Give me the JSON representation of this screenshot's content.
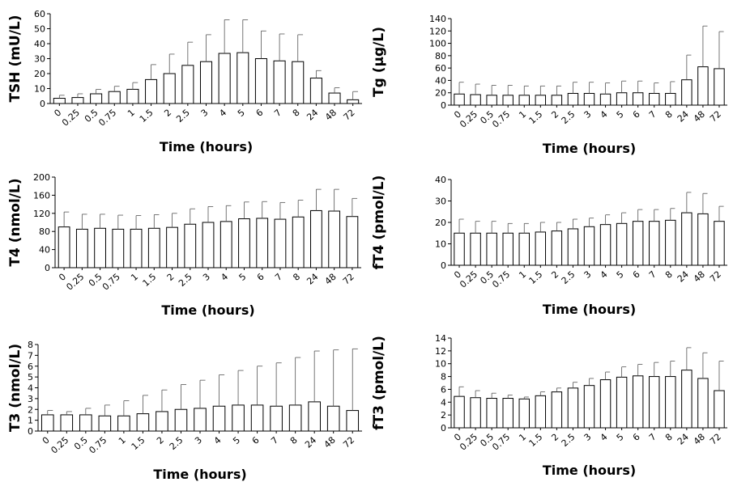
{
  "chart_data": [
    {
      "type": "bar",
      "ylabel": "TSH (mU/L)",
      "xlabel": "Time (hours)",
      "categories": [
        "0",
        "0.25",
        "0.5",
        "0.75",
        "1",
        "1.5",
        "2",
        "2.5",
        "3",
        "4",
        "5",
        "6",
        "7",
        "8",
        "24",
        "48",
        "72"
      ],
      "ylim": [
        0,
        60
      ],
      "yticks": [
        0,
        10,
        20,
        30,
        40,
        50,
        60
      ],
      "values": [
        3.5,
        4,
        6.5,
        8,
        9.5,
        16,
        20,
        25.5,
        28,
        33.5,
        34,
        30,
        28.5,
        28,
        17,
        7,
        2.5
      ],
      "errors": [
        2,
        2.5,
        3,
        3.5,
        4.5,
        10,
        13,
        15.5,
        18,
        22.5,
        22,
        18.5,
        18,
        18,
        5,
        3.5,
        5.5
      ]
    },
    {
      "type": "bar",
      "ylabel": "Tg (µg/L)",
      "xlabel": "Time (hours)",
      "categories": [
        "0",
        "0.25",
        "0.5",
        "0.75",
        "1",
        "1.5",
        "2",
        "2.5",
        "3",
        "4",
        "5",
        "6",
        "7",
        "8",
        "24",
        "48",
        "72"
      ],
      "ylim": [
        0,
        140
      ],
      "yticks": [
        0,
        20,
        40,
        60,
        80,
        100,
        120,
        140
      ],
      "values": [
        18,
        17,
        16,
        16,
        16,
        16,
        16,
        19,
        19,
        18,
        20,
        20,
        19,
        19,
        41,
        62,
        59
      ],
      "errors": [
        19,
        17,
        16,
        16,
        15,
        15,
        15,
        18,
        18,
        18,
        19,
        19,
        17,
        19,
        40,
        66,
        60
      ]
    },
    {
      "type": "bar",
      "ylabel": "T4 (nmol/L)",
      "xlabel": "Time (hours)",
      "categories": [
        "0",
        "0.25",
        "0.5",
        "0.75",
        "1",
        "1.5",
        "2",
        "2.5",
        "3",
        "4",
        "5",
        "6",
        "7",
        "8",
        "24",
        "48",
        "72"
      ],
      "ylim": [
        0,
        200
      ],
      "yticks": [
        0,
        40,
        80,
        120,
        160,
        200
      ],
      "values": [
        90,
        85,
        87,
        85,
        85,
        87,
        89,
        96,
        100,
        102,
        108,
        109,
        107,
        112,
        126,
        125,
        113
      ],
      "errors": [
        33,
        33,
        31,
        31,
        30,
        30,
        31,
        34,
        35,
        35,
        37,
        37,
        37,
        37,
        47,
        48,
        40
      ]
    },
    {
      "type": "bar",
      "ylabel": "fT4 (pmol/L)",
      "xlabel": "Time (hours)",
      "categories": [
        "0",
        "0.25",
        "0.5",
        "0.75",
        "1",
        "1.5",
        "2",
        "2.5",
        "3",
        "4",
        "5",
        "6",
        "7",
        "8",
        "24",
        "48",
        "72"
      ],
      "ylim": [
        0,
        40
      ],
      "yticks": [
        0,
        10,
        20,
        30,
        40
      ],
      "values": [
        15,
        15,
        15,
        15,
        15,
        15.5,
        16,
        17,
        18,
        19,
        19.5,
        20.5,
        20.5,
        21,
        24.5,
        24,
        20.5
      ],
      "errors": [
        6.5,
        5.5,
        5.5,
        4.5,
        4.5,
        4.5,
        4,
        4.5,
        4,
        4.5,
        5,
        5.5,
        5.5,
        5.5,
        9.5,
        9.5,
        7
      ]
    },
    {
      "type": "bar",
      "ylabel": "T3 (nmol/L)",
      "xlabel": "Time (hours)",
      "categories": [
        "0",
        "0.25",
        "0.5",
        "0.75",
        "1",
        "1.5",
        "2",
        "2.5",
        "3",
        "4",
        "5",
        "6",
        "7",
        "8",
        "24",
        "48",
        "72"
      ],
      "ylim": [
        0,
        8
      ],
      "yticks": [
        0,
        1,
        2,
        3,
        4,
        5,
        6,
        7,
        8
      ],
      "values": [
        1.5,
        1.5,
        1.5,
        1.4,
        1.4,
        1.6,
        1.8,
        2,
        2.1,
        2.3,
        2.4,
        2.4,
        2.3,
        2.4,
        2.7,
        2.3,
        1.9
      ],
      "errors": [
        0.4,
        0.3,
        0.6,
        1,
        1.4,
        1.7,
        2,
        2.3,
        2.6,
        2.9,
        3.2,
        3.6,
        4,
        4.4,
        4.7,
        5.2,
        5.7
      ]
    },
    {
      "type": "bar",
      "ylabel": "fT3 (pmol/L)",
      "xlabel": "Time (hours)",
      "categories": [
        "0",
        "0.25",
        "0.5",
        "0.75",
        "1",
        "1.5",
        "2",
        "2.5",
        "3",
        "4",
        "5",
        "6",
        "7",
        "8",
        "24",
        "48",
        "72"
      ],
      "ylim": [
        0,
        14
      ],
      "yticks": [
        0,
        2,
        4,
        6,
        8,
        10,
        12,
        14
      ],
      "values": [
        4.9,
        4.7,
        4.6,
        4.6,
        4.5,
        5,
        5.6,
        6.2,
        6.6,
        7.5,
        7.9,
        8.1,
        8,
        8,
        9,
        7.7,
        5.8
      ],
      "errors": [
        1.5,
        1.1,
        0.8,
        0.5,
        0.3,
        0.6,
        0.6,
        0.9,
        1.1,
        1.2,
        1.6,
        1.8,
        2.2,
        2.4,
        3.5,
        4,
        4.6
      ]
    }
  ]
}
